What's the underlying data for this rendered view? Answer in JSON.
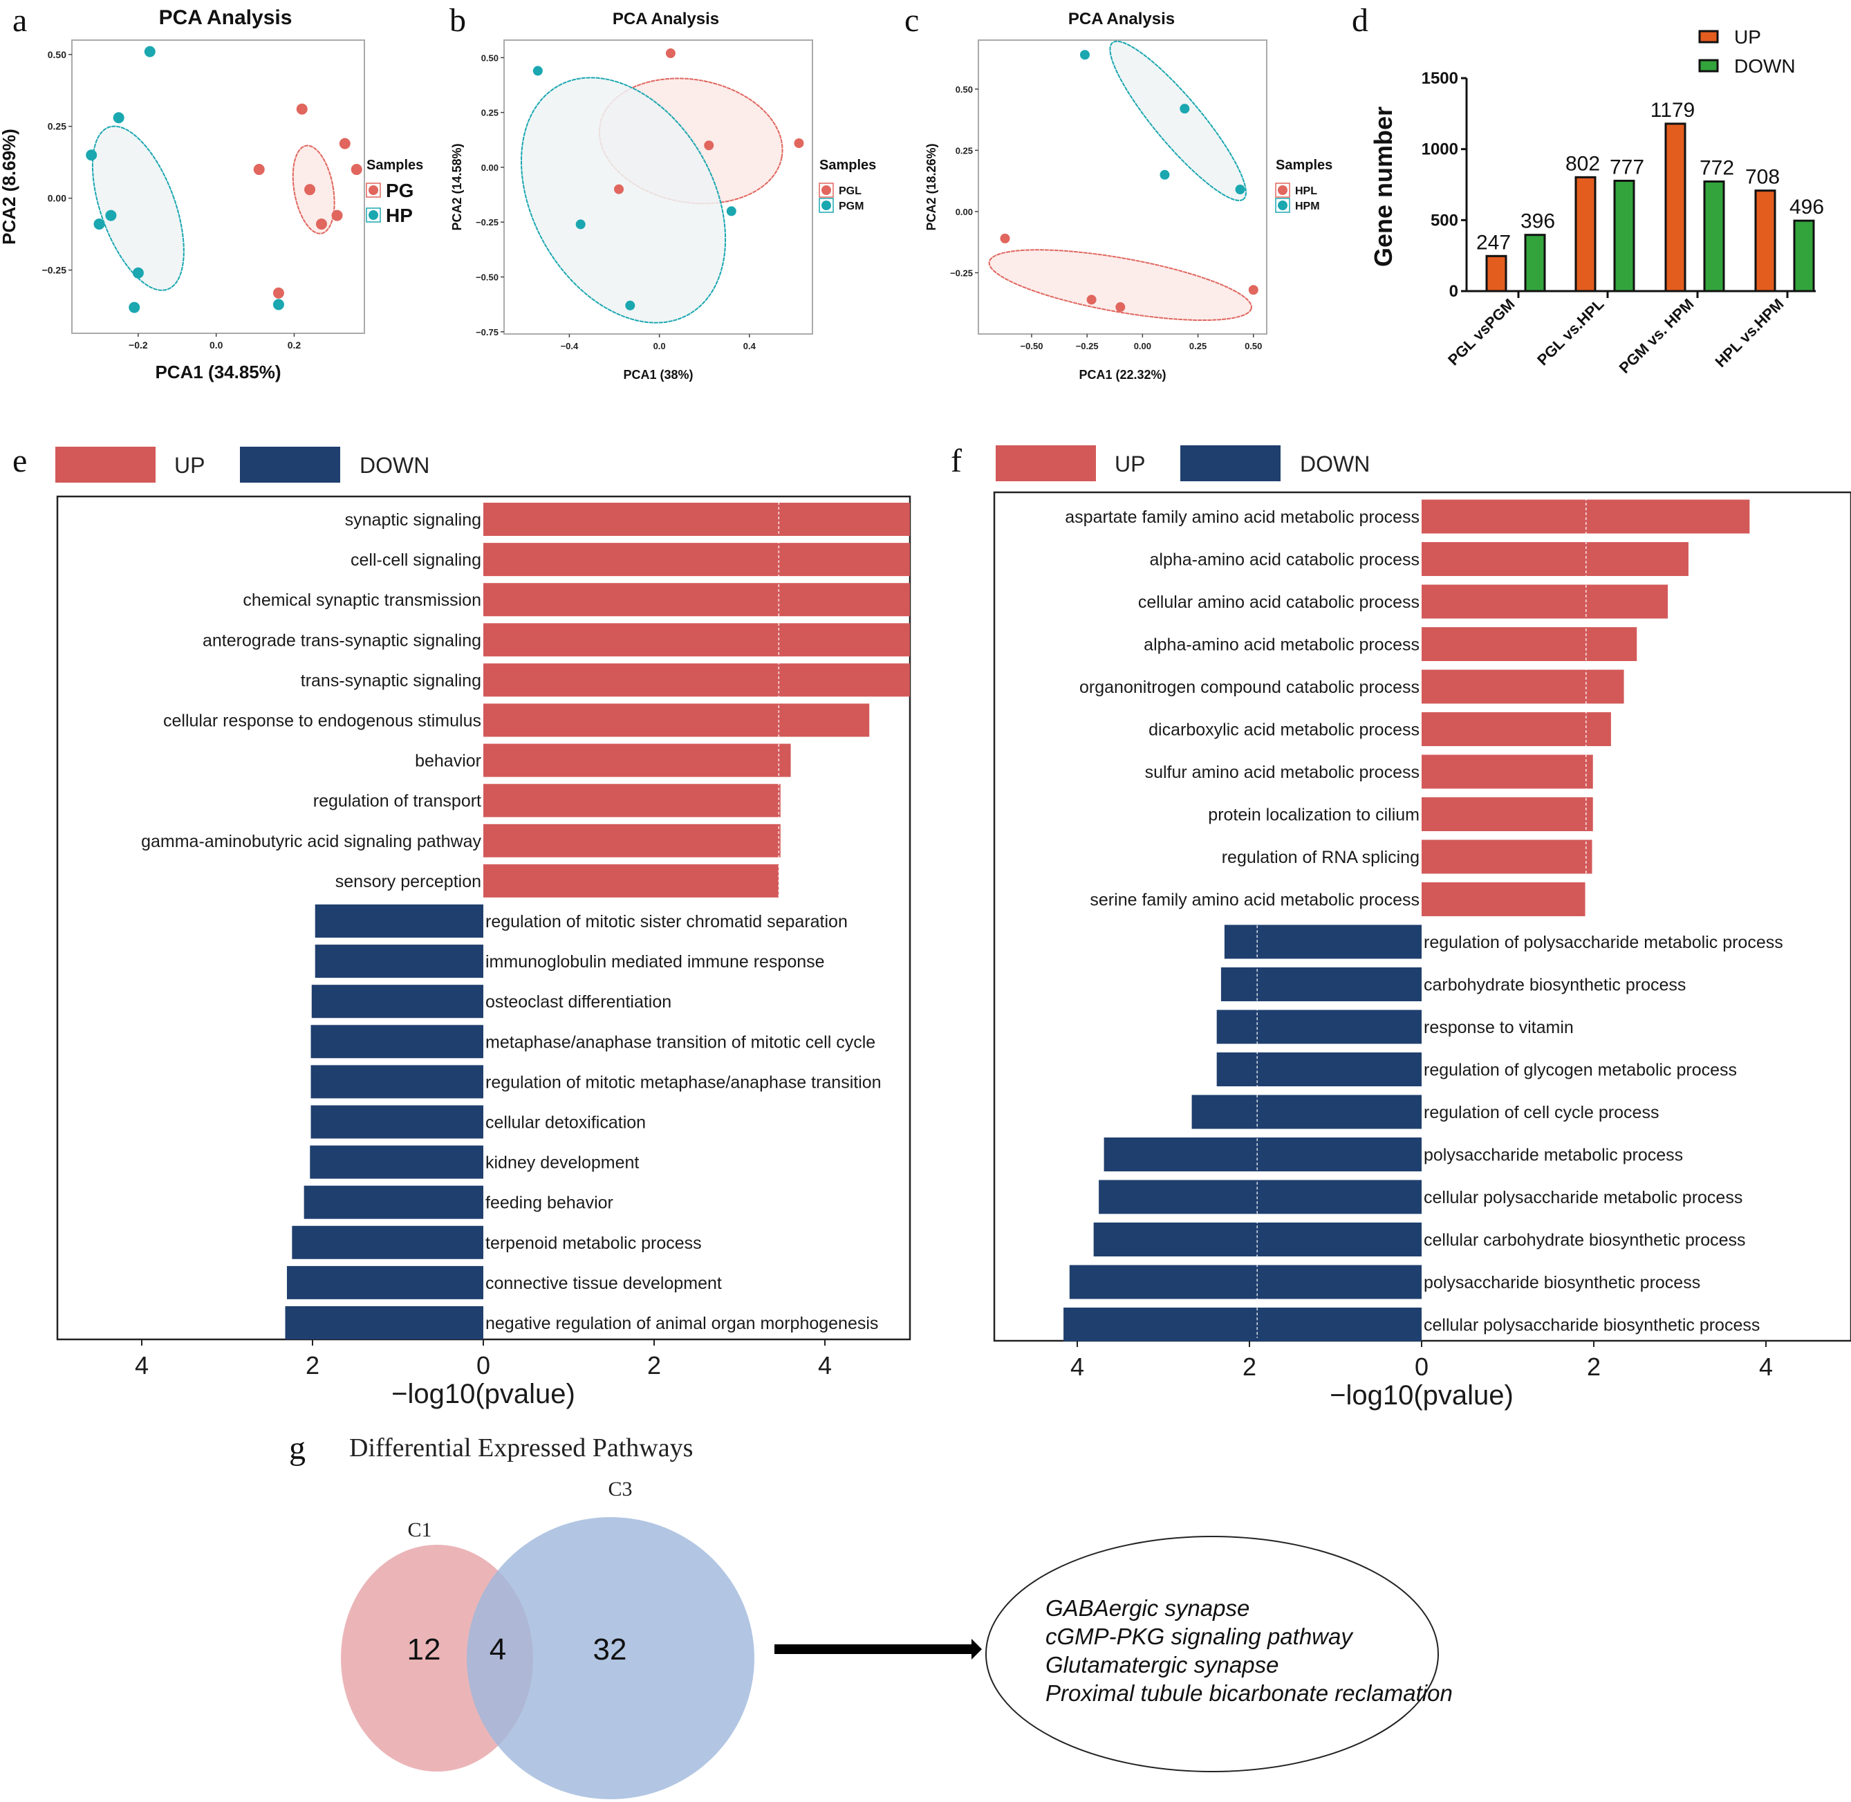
{
  "panel_letters": {
    "a": "a",
    "b": "b",
    "c": "c",
    "d": "d",
    "e": "e",
    "f": "f",
    "g": "g"
  },
  "colors": {
    "group1": "#e0665e",
    "group2": "#1aa7b0",
    "ellipse1_fill": "#fbe9e6",
    "ellipse2_fill": "#eef3f4",
    "bar_up": "#e35d1f",
    "bar_down": "#33a33c",
    "go_up": "#d35959",
    "go_down": "#1f3f6e",
    "venn_c1": "#e8a8ab",
    "venn_c3": "#9fb8dc"
  },
  "chart_data": [
    {
      "id": "a",
      "type": "scatter",
      "title": "PCA Analysis",
      "xlabel": "PCA1 (34.85%)",
      "ylabel": "PCA2 (8.69%)",
      "xlim": [
        -0.37,
        0.38
      ],
      "ylim": [
        -0.47,
        0.55
      ],
      "xticks": [
        -0.2,
        0.0,
        0.2
      ],
      "xtick_labels": [
        "−0.2",
        "0.0",
        "0.2"
      ],
      "yticks": [
        -0.25,
        0.0,
        0.25,
        0.5
      ],
      "ytick_labels": [
        "−0.25",
        "0.00",
        "0.25",
        "0.50"
      ],
      "legend_title": "Samples",
      "legend_position": "right",
      "series": [
        {
          "name": "PG",
          "points": [
            [
              0.22,
              0.31
            ],
            [
              0.33,
              0.19
            ],
            [
              0.36,
              0.1
            ],
            [
              0.11,
              0.1
            ],
            [
              0.24,
              0.03
            ],
            [
              0.31,
              -0.06
            ],
            [
              0.27,
              -0.09
            ],
            [
              0.16,
              -0.33
            ]
          ],
          "ellipse": {
            "cx": 0.25,
            "cy": 0.03,
            "rx": 0.05,
            "ry": 0.155,
            "angle": -10
          }
        },
        {
          "name": "HP",
          "points": [
            [
              -0.17,
              0.51
            ],
            [
              -0.25,
              0.28
            ],
            [
              -0.32,
              0.15
            ],
            [
              -0.27,
              -0.06
            ],
            [
              -0.3,
              -0.09
            ],
            [
              -0.2,
              -0.26
            ],
            [
              -0.21,
              -0.38
            ],
            [
              0.16,
              -0.37
            ]
          ],
          "ellipse": {
            "cx": -0.2,
            "cy": -0.035,
            "rx": 0.095,
            "ry": 0.3,
            "angle": -20
          }
        }
      ]
    },
    {
      "id": "b",
      "type": "scatter",
      "title": "PCA Analysis",
      "xlabel": "PCA1 (38%)",
      "ylabel": "PCA2 (14.58%)",
      "xlim": [
        -0.69,
        0.68
      ],
      "ylim": [
        -0.76,
        0.58
      ],
      "xticks": [
        -0.4,
        0.0,
        0.4
      ],
      "xtick_labels": [
        "−0.4",
        "0.0",
        "0.4"
      ],
      "yticks": [
        -0.75,
        -0.5,
        -0.25,
        0.0,
        0.25,
        0.5
      ],
      "ytick_labels": [
        "−0.75",
        "−0.50",
        "−0.25",
        "0.00",
        "0.25",
        "0.50"
      ],
      "legend_title": "Samples",
      "legend_position": "right",
      "series": [
        {
          "name": "PGL",
          "points": [
            [
              0.05,
              0.52
            ],
            [
              0.22,
              0.1
            ],
            [
              0.62,
              0.11
            ],
            [
              -0.18,
              -0.1
            ]
          ],
          "ellipse": {
            "cx": 0.14,
            "cy": 0.12,
            "rx": 0.41,
            "ry": 0.28,
            "angle": 10
          }
        },
        {
          "name": "PGM",
          "points": [
            [
              -0.54,
              0.44
            ],
            [
              -0.35,
              -0.26
            ],
            [
              -0.13,
              -0.63
            ],
            [
              0.32,
              -0.2
            ]
          ],
          "ellipse": {
            "cx": -0.16,
            "cy": -0.15,
            "rx": 0.4,
            "ry": 0.6,
            "angle": -30
          }
        }
      ]
    },
    {
      "id": "c",
      "type": "scatter",
      "title": "PCA Analysis",
      "xlabel": "PCA1 (22.32%)",
      "ylabel": "PCA2 (18.26%)",
      "xlim": [
        -0.74,
        0.56
      ],
      "ylim": [
        -0.5,
        0.7
      ],
      "xticks": [
        -0.5,
        -0.25,
        0.0,
        0.25,
        0.5
      ],
      "xtick_labels": [
        "−0.50",
        "−0.25",
        "0.00",
        "0.25",
        "0.50"
      ],
      "yticks": [
        -0.25,
        0.0,
        0.25,
        0.5
      ],
      "ytick_labels": [
        "−0.25",
        "0.00",
        "0.25",
        "0.50"
      ],
      "legend_title": "Samples",
      "legend_position": "right",
      "series": [
        {
          "name": "HPL",
          "points": [
            [
              -0.62,
              -0.11
            ],
            [
              -0.23,
              -0.36
            ],
            [
              -0.1,
              -0.39
            ],
            [
              0.5,
              -0.32
            ]
          ],
          "ellipse": {
            "cx": -0.1,
            "cy": -0.3,
            "rx": 0.6,
            "ry": 0.11,
            "angle": 10
          }
        },
        {
          "name": "HPM",
          "points": [
            [
              -0.26,
              0.64
            ],
            [
              0.19,
              0.42
            ],
            [
              0.1,
              0.15
            ],
            [
              0.44,
              0.09
            ]
          ],
          "ellipse": {
            "cx": 0.16,
            "cy": 0.37,
            "rx": 0.46,
            "ry": 0.095,
            "angle": 50
          }
        }
      ]
    },
    {
      "id": "d",
      "type": "bar",
      "title": "",
      "xlabel": "",
      "ylabel": "Gene number",
      "ylim": [
        0,
        1500
      ],
      "yticks": [
        0,
        500,
        1000,
        1500
      ],
      "categories": [
        "PGL vsPGM",
        "PGL vs.HPL",
        "PGM vs. HPM",
        "HPL vs.HPM"
      ],
      "series": [
        {
          "name": "UP",
          "values": [
            247,
            802,
            1179,
            708
          ]
        },
        {
          "name": "DOWN",
          "values": [
            396,
            777,
            772,
            496
          ]
        }
      ],
      "legend_position": "top-right"
    },
    {
      "id": "e",
      "type": "bar",
      "orientation": "horizontal-diverging",
      "xlabel": "−log10(pvalue)",
      "xlim": [
        -5,
        5
      ],
      "xticks": [
        -4,
        -2,
        0,
        2,
        4
      ],
      "xtick_labels": [
        "4",
        "2",
        "0",
        "2",
        "4"
      ],
      "threshold_line": 3.46,
      "legend": [
        "UP",
        "DOWN"
      ],
      "legend_position": "top-left",
      "up": [
        {
          "term": "synaptic signaling",
          "value": 5.0
        },
        {
          "term": "cell-cell signaling",
          "value": 5.0
        },
        {
          "term": "chemical synaptic transmission",
          "value": 5.0
        },
        {
          "term": "anterograde trans-synaptic signaling",
          "value": 5.0
        },
        {
          "term": "trans-synaptic signaling",
          "value": 5.0
        },
        {
          "term": "cellular response to endogenous stimulus",
          "value": 4.52
        },
        {
          "term": "behavior",
          "value": 3.6
        },
        {
          "term": "regulation of transport",
          "value": 3.48
        },
        {
          "term": "gamma-aminobutyric acid signaling pathway",
          "value": 3.48
        },
        {
          "term": "sensory perception",
          "value": 3.46
        }
      ],
      "down": [
        {
          "term": "regulation of mitotic sister chromatid separation",
          "value": 1.97
        },
        {
          "term": "immunoglobulin mediated immune response",
          "value": 1.97
        },
        {
          "term": "osteoclast differentiation",
          "value": 2.01
        },
        {
          "term": "metaphase/anaphase transition of mitotic cell cycle",
          "value": 2.02
        },
        {
          "term": "regulation of mitotic metaphase/anaphase transition",
          "value": 2.02
        },
        {
          "term": "cellular detoxification",
          "value": 2.02
        },
        {
          "term": "kidney development",
          "value": 2.03
        },
        {
          "term": "feeding behavior",
          "value": 2.1
        },
        {
          "term": "terpenoid metabolic process",
          "value": 2.24
        },
        {
          "term": "connective tissue development",
          "value": 2.3
        },
        {
          "term": "negative regulation of animal organ morphogenesis",
          "value": 2.32
        }
      ]
    },
    {
      "id": "f",
      "type": "bar",
      "orientation": "horizontal-diverging",
      "xlabel": "−log10(pvalue)",
      "xlim": [
        -5,
        5
      ],
      "xticks": [
        -4,
        -2,
        0,
        2,
        4
      ],
      "xtick_labels": [
        "4",
        "2",
        "0",
        "2",
        "4"
      ],
      "threshold_line": 1.91,
      "legend": [
        "UP",
        "DOWN"
      ],
      "legend_position": "top-left",
      "up": [
        {
          "term": "aspartate family amino acid metabolic process",
          "value": 3.81
        },
        {
          "term": "alpha-amino acid catabolic process",
          "value": 3.1
        },
        {
          "term": "cellular amino acid catabolic process",
          "value": 2.86
        },
        {
          "term": "alpha-amino acid metabolic process",
          "value": 2.5
        },
        {
          "term": "organonitrogen compound catabolic process",
          "value": 2.35
        },
        {
          "term": "dicarboxylic acid metabolic process",
          "value": 2.2
        },
        {
          "term": "sulfur amino acid metabolic process",
          "value": 1.99
        },
        {
          "term": "protein localization to cilium",
          "value": 1.99
        },
        {
          "term": "regulation of RNA splicing",
          "value": 1.98
        },
        {
          "term": "serine family amino acid metabolic process",
          "value": 1.9
        }
      ],
      "down": [
        {
          "term": "regulation of polysaccharide metabolic process",
          "value": 2.29
        },
        {
          "term": "carbohydrate biosynthetic process",
          "value": 2.33
        },
        {
          "term": "response to vitamin",
          "value": 2.38
        },
        {
          "term": "regulation of glycogen metabolic process",
          "value": 2.38
        },
        {
          "term": "regulation of cell cycle process",
          "value": 2.67
        },
        {
          "term": "polysaccharide metabolic process",
          "value": 3.69
        },
        {
          "term": "cellular polysaccharide metabolic process",
          "value": 3.75
        },
        {
          "term": "cellular carbohydrate biosynthetic process",
          "value": 3.81
        },
        {
          "term": "polysaccharide biosynthetic process",
          "value": 4.09
        },
        {
          "term": "cellular polysaccharide biosynthetic process",
          "value": 4.16
        }
      ]
    },
    {
      "id": "g",
      "type": "venn",
      "title": "Differential Expressed Pathways",
      "sets": [
        {
          "name": "C1",
          "only": 12
        },
        {
          "name": "C3",
          "only": 32
        }
      ],
      "intersection": 4,
      "shared_pathways": [
        "GABAergic synapse",
        "cGMP-PKG signaling pathway",
        "Glutamatergic synapse",
        "Proximal tubule bicarbonate reclamation"
      ]
    }
  ]
}
